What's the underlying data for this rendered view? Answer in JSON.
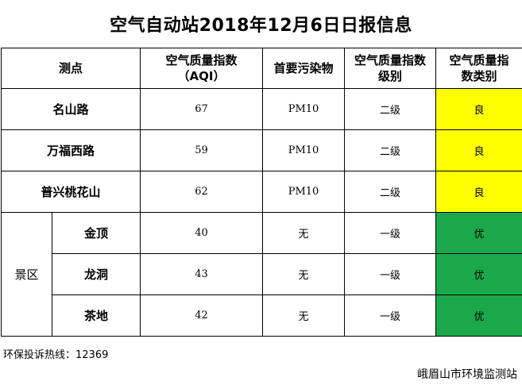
{
  "title": "空气自动站2018年12月6日日报信息",
  "headers": {
    "station": "测点",
    "aqi_line1": "空气质量指数",
    "aqi_line2": "（AQI）",
    "pollutant": "首要污染物",
    "level_line1": "空气质量指数",
    "level_line2": "级别",
    "category_line1": "空气质量指",
    "category_line2": "数类别"
  },
  "rows": [
    {
      "station": "名山路",
      "aqi": "67",
      "pollutant": "PM10",
      "level": "二级",
      "category": "良"
    },
    {
      "station": "万福西路",
      "aqi": "59",
      "pollutant": "PM10",
      "level": "二级",
      "category": "良"
    },
    {
      "station": "普兴桃花山",
      "aqi": "62",
      "pollutant": "PM10",
      "level": "二级",
      "category": "良"
    }
  ],
  "scenic": {
    "group_label": "景区",
    "rows": [
      {
        "station": "金顶",
        "aqi": "40",
        "pollutant": "无",
        "level": "一级",
        "category": "优"
      },
      {
        "station": "龙洞",
        "aqi": "43",
        "pollutant": "无",
        "level": "一级",
        "category": "优"
      },
      {
        "station": "茶地",
        "aqi": "42",
        "pollutant": "无",
        "level": "一级",
        "category": "优"
      }
    ]
  },
  "colors": {
    "good": "#ffff00",
    "excellent": "#1aa84b"
  },
  "footer": {
    "hotline": "环保投诉热线：12369",
    "org": "峨眉山市环境监测站"
  }
}
